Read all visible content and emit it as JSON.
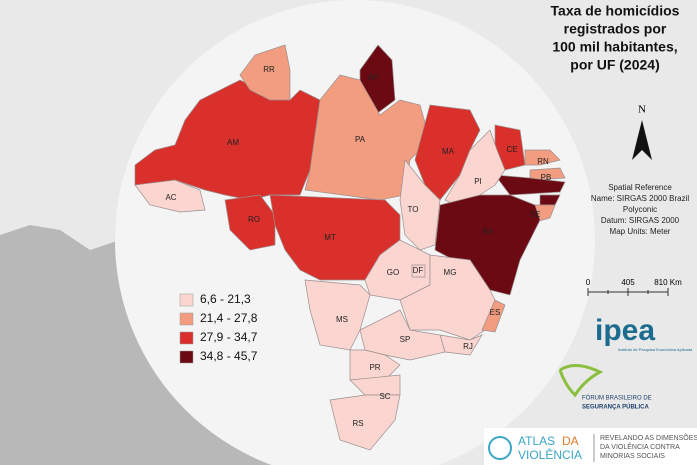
{
  "title": [
    "Taxa de homicídios",
    "registrados por",
    "100 mil habitantes,",
    "por UF (2024)"
  ],
  "north": "N",
  "spatial_reference": [
    "Spatial Reference",
    "Name: SIRGAS 2000 Brazil",
    "Polyconic",
    "Datum: SIRGAS 2000",
    "Map Units: Meter"
  ],
  "scale_labels": [
    "0",
    "405",
    "810 Km"
  ],
  "legend": [
    {
      "label": "6,6 - 21,3",
      "color": "#fbd6d0"
    },
    {
      "label": "21,4 - 27,8",
      "color": "#f29c80"
    },
    {
      "label": "27,9 - 34,7",
      "color": "#d9302c"
    },
    {
      "label": "34,8 - 45,7",
      "color": "#6b0a12"
    }
  ],
  "states": [
    {
      "label": "AC",
      "color": "#fbd6d0"
    },
    {
      "label": "AM",
      "color": "#d9302c"
    },
    {
      "label": "RR",
      "color": "#f29c80"
    },
    {
      "label": "AP",
      "color": "#6b0a12"
    },
    {
      "label": "PA",
      "color": "#f29c80"
    },
    {
      "label": "MA",
      "color": "#d9302c"
    },
    {
      "label": "CE",
      "color": "#d9302c"
    },
    {
      "label": "RN",
      "color": "#f29c80"
    },
    {
      "label": "PB",
      "color": "#f29c80"
    },
    {
      "label": "SE",
      "color": "#f29c80"
    },
    {
      "label": "PI",
      "color": "#fbd6d0"
    },
    {
      "label": "BA",
      "color": "#6b0a12"
    },
    {
      "label": "TO",
      "color": "#fbd6d0"
    },
    {
      "label": "RO",
      "color": "#d9302c"
    },
    {
      "label": "MT",
      "color": "#d9302c"
    },
    {
      "label": "GO",
      "color": "#fbd6d0"
    },
    {
      "label": "DF",
      "color": "#fbd6d0"
    },
    {
      "label": "MG",
      "color": "#fbd6d0"
    },
    {
      "label": "ES",
      "color": "#f29c80"
    },
    {
      "label": "RJ",
      "color": "#fbd6d0"
    },
    {
      "label": "SP",
      "color": "#fbd6d0"
    },
    {
      "label": "MS",
      "color": "#fbd6d0"
    },
    {
      "label": "PR",
      "color": "#fbd6d0"
    },
    {
      "label": "SC",
      "color": "#fbd6d0"
    },
    {
      "label": "RS",
      "color": "#fbd6d0"
    }
  ],
  "unlabeled_colors": {
    "pe": "#6b0a12",
    "al": "#6b0a12"
  },
  "ipea": {
    "name": "ipea",
    "subtitle": "Instituto de Pesquisa Econômica Aplicada"
  },
  "forum": [
    "FÓRUM BRASILEIRO DE",
    "SEGURANÇA PÚBLICA"
  ],
  "atlas": {
    "word1": "ATLAS",
    "word2": "DA",
    "word3": "VIOLÊNCIA",
    "tagline": [
      "REVELANDO AS DIMENSÕES",
      "DA VIOLÊNCIA CONTRA",
      "MINORIAS SOCIAIS"
    ]
  }
}
